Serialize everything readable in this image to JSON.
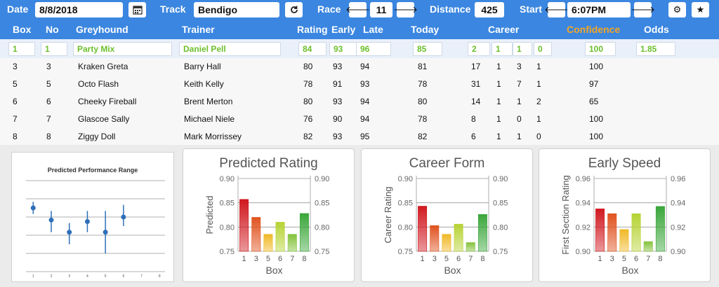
{
  "toolbar": {
    "date_label": "Date",
    "date_value": "8/8/2018",
    "track_label": "Track",
    "track_value": "Bendigo",
    "race_label": "Race",
    "race_value": "11",
    "distance_label": "Distance",
    "distance_value": "425",
    "start_label": "Start",
    "start_value": "6:07PM"
  },
  "headers": {
    "box": "Box",
    "no": "No",
    "greyhound": "Greyhound",
    "trainer": "Trainer",
    "rating": "Rating",
    "early": "Early",
    "late": "Late",
    "today": "Today",
    "career": "Career",
    "confidence": "Confidence",
    "odds": "Odds"
  },
  "selected": {
    "box": "1",
    "no": "1",
    "greyhound": "Party Mix",
    "trainer": "Daniel Pell",
    "rating": "84",
    "early": "93",
    "late": "96",
    "today": "85",
    "c1": "2",
    "c2": "1",
    "c3": "1",
    "c4": "0",
    "confidence": "100",
    "odds": "1.85"
  },
  "rows": [
    {
      "box": "3",
      "no": "3",
      "greyhound": "Kraken Greta",
      "trainer": "Barry Hall",
      "rating": "80",
      "early": "93",
      "late": "94",
      "today": "81",
      "c1": "17",
      "c2": "1",
      "c3": "3",
      "c4": "1",
      "confidence": "100"
    },
    {
      "box": "5",
      "no": "5",
      "greyhound": "Octo Flash",
      "trainer": "Keith Kelly",
      "rating": "78",
      "early": "91",
      "late": "93",
      "today": "78",
      "c1": "31",
      "c2": "1",
      "c3": "7",
      "c4": "1",
      "confidence": "97"
    },
    {
      "box": "6",
      "no": "6",
      "greyhound": "Cheeky Fireball",
      "trainer": "Brent Merton",
      "rating": "80",
      "early": "93",
      "late": "94",
      "today": "80",
      "c1": "14",
      "c2": "1",
      "c3": "1",
      "c4": "2",
      "confidence": "65"
    },
    {
      "box": "7",
      "no": "7",
      "greyhound": "Glascoe Sally",
      "trainer": "Michael Niele",
      "rating": "76",
      "early": "90",
      "late": "94",
      "today": "78",
      "c1": "8",
      "c2": "1",
      "c3": "0",
      "c4": "1",
      "confidence": "100"
    },
    {
      "box": "8",
      "no": "8",
      "greyhound": "Ziggy Doll",
      "trainer": "Mark Morrissey",
      "rating": "82",
      "early": "93",
      "late": "95",
      "today": "82",
      "c1": "6",
      "c2": "1",
      "c3": "1",
      "c4": "0",
      "confidence": "100"
    }
  ],
  "colors": {
    "header_blue": "#3b86e0",
    "confidence_orange": "#f5a623",
    "selected_green": "#6cbf2c"
  },
  "icons": [
    "calendar-icon",
    "refresh-icon",
    "arrow-left-icon",
    "arrow-right-icon",
    "gear-icon",
    "star-icon"
  ],
  "chart_data": [
    {
      "type": "scatter",
      "title": "Predicted Performance Range",
      "x": [
        1,
        2,
        3,
        4,
        5,
        6
      ],
      "y": [
        0.86,
        0.82,
        0.78,
        0.815,
        0.78,
        0.83
      ],
      "err_low": [
        0.84,
        0.78,
        0.74,
        0.78,
        0.71,
        0.8
      ],
      "err_high": [
        0.88,
        0.85,
        0.81,
        0.85,
        0.85,
        0.87
      ],
      "xlim": [
        1,
        8
      ],
      "x_ticks": [
        "1",
        "2",
        "3",
        "4",
        "5",
        "6",
        "7",
        "8"
      ]
    },
    {
      "type": "bar",
      "title": "Predicted Rating",
      "xlabel": "Box",
      "ylabel": "Predicted",
      "categories": [
        "1",
        "3",
        "5",
        "6",
        "7",
        "8"
      ],
      "values": [
        0.857,
        0.82,
        0.785,
        0.81,
        0.785,
        0.828
      ],
      "ylim": [
        0.75,
        0.9
      ],
      "y_ticks": [
        "0.75",
        "0.80",
        "0.85",
        "0.90"
      ],
      "bar_colors": [
        "#d0181f",
        "#e0521f",
        "#f0b825",
        "#b6d334",
        "#84c23a",
        "#3aa63a"
      ]
    },
    {
      "type": "bar",
      "title": "Career Form",
      "xlabel": "Box",
      "ylabel": "Career Rating",
      "categories": [
        "1",
        "3",
        "5",
        "6",
        "7",
        "8"
      ],
      "values": [
        0.843,
        0.803,
        0.785,
        0.806,
        0.768,
        0.826
      ],
      "ylim": [
        0.75,
        0.9
      ],
      "y_ticks": [
        "0.75",
        "0.80",
        "0.85",
        "0.90"
      ],
      "bar_colors": [
        "#d0181f",
        "#e0521f",
        "#f0b825",
        "#b6d334",
        "#84c23a",
        "#3aa63a"
      ]
    },
    {
      "type": "bar",
      "title": "Early Speed",
      "xlabel": "Box",
      "ylabel": "First Section Rating",
      "categories": [
        "1",
        "3",
        "5",
        "6",
        "7",
        "8"
      ],
      "values": [
        0.935,
        0.931,
        0.918,
        0.931,
        0.908,
        0.937
      ],
      "ylim": [
        0.9,
        0.96
      ],
      "y_ticks": [
        "0.90",
        "0.92",
        "0.94",
        "0.96"
      ],
      "bar_colors": [
        "#d0181f",
        "#e0521f",
        "#f0b825",
        "#b6d334",
        "#84c23a",
        "#3aa63a"
      ]
    }
  ]
}
